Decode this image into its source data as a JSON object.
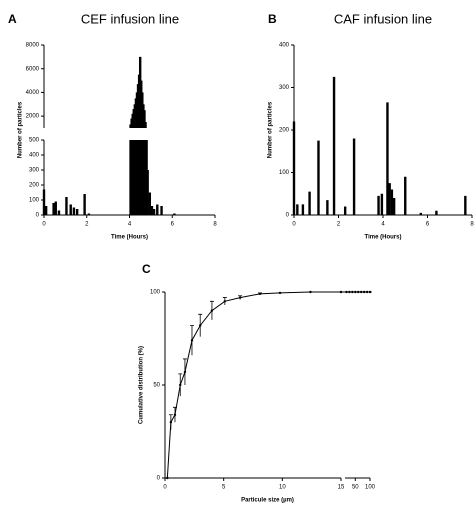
{
  "chart_data": [
    {
      "type": "bar",
      "panel": "A",
      "title": "CEF infusion line",
      "xlabel": "Time (Hours)",
      "ylabel": "Number of particles",
      "x": [
        0,
        0.1,
        0.45,
        0.55,
        0.7,
        1.05,
        1.25,
        1.4,
        1.55,
        1.9,
        2.1,
        4.05,
        4.1,
        4.15,
        4.2,
        4.25,
        4.3,
        4.35,
        4.4,
        4.45,
        4.5,
        4.55,
        4.6,
        4.65,
        4.7,
        4.75,
        4.8,
        4.85,
        4.95,
        5.05,
        5.15,
        5.3,
        5.5,
        6.1
      ],
      "values": [
        170,
        60,
        80,
        90,
        30,
        120,
        70,
        50,
        40,
        140,
        10,
        1300,
        1800,
        2200,
        2600,
        3000,
        3500,
        4000,
        4700,
        5500,
        7000,
        5000,
        4000,
        3000,
        2500,
        1500,
        800,
        300,
        150,
        60,
        40,
        70,
        60,
        10
      ],
      "color": "#000000",
      "xlim": [
        0,
        8
      ],
      "xticks": [
        0,
        2,
        4,
        6,
        8
      ],
      "ylim": [
        0,
        8000
      ],
      "ybreak": [
        500,
        1000
      ],
      "yticks": [
        0,
        100,
        200,
        300,
        400,
        500,
        2000,
        4000,
        6000,
        8000
      ]
    },
    {
      "type": "bar",
      "panel": "B",
      "title": "CAF infusion line",
      "xlabel": "Time (Hours)",
      "ylabel": "Number of particles",
      "x": [
        0,
        0.15,
        0.4,
        0.7,
        1.1,
        1.5,
        1.8,
        2.3,
        2.7,
        3.8,
        3.95,
        4.2,
        4.3,
        4.4,
        4.5,
        5.0,
        5.7,
        6.4,
        7.7
      ],
      "values": [
        220,
        25,
        25,
        55,
        175,
        35,
        325,
        20,
        180,
        45,
        50,
        265,
        75,
        60,
        40,
        90,
        5,
        10,
        45
      ],
      "color": "#000000",
      "xlim": [
        0,
        8
      ],
      "xticks": [
        0,
        2,
        4,
        6,
        8
      ],
      "ylim": [
        0,
        400
      ],
      "yticks": [
        0,
        100,
        200,
        300,
        400
      ]
    },
    {
      "type": "line",
      "panel": "C",
      "xlabel": "Particule size (µm)",
      "ylabel": "Cumulative distribution (%)",
      "x": [
        0.2,
        0.5,
        0.85,
        1.3,
        1.7,
        2.3,
        3,
        4,
        5.1,
        6.4,
        8.1,
        9.8,
        12.4,
        15,
        20,
        30,
        40,
        50,
        60,
        70,
        80,
        90,
        100
      ],
      "values": [
        0,
        30,
        34,
        50,
        57,
        74,
        82,
        90,
        95,
        97,
        99,
        99.5,
        100,
        100,
        100,
        100,
        100,
        100,
        100,
        100,
        100,
        100,
        100
      ],
      "errors": [
        0,
        4,
        4,
        6,
        7,
        8,
        6,
        5,
        2,
        1,
        0.5,
        0,
        0,
        0,
        0,
        0,
        0,
        0,
        0,
        0,
        0,
        0,
        0
      ],
      "color": "#000000",
      "xlim": [
        0,
        100
      ],
      "xbreak": [
        15,
        15
      ],
      "xticks": [
        0,
        5,
        10,
        15,
        50,
        100
      ],
      "ylim": [
        0,
        100
      ],
      "yticks": [
        0,
        50,
        100
      ]
    }
  ]
}
